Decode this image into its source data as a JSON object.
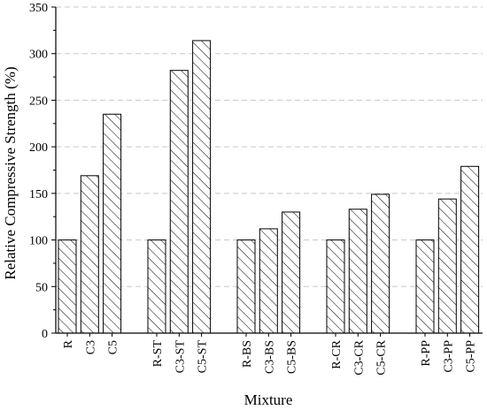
{
  "chart_data": {
    "type": "bar",
    "xlabel": "Mixture",
    "ylabel": "Relative Compressive Strength (%)",
    "ylim": [
      0,
      350
    ],
    "yticks": [
      0,
      50,
      100,
      150,
      200,
      250,
      300,
      350
    ],
    "grid": true,
    "fill": "hatched",
    "groups": [
      {
        "categories": [
          "R",
          "C3",
          "C5"
        ],
        "values": [
          100,
          169,
          235
        ]
      },
      {
        "categories": [
          "R-ST",
          "C3-ST",
          "C5-ST"
        ],
        "values": [
          100,
          282,
          314
        ]
      },
      {
        "categories": [
          "R-BS",
          "C3-BS",
          "C5-BS"
        ],
        "values": [
          100,
          112,
          130
        ]
      },
      {
        "categories": [
          "R-CR",
          "C3-CR",
          "C5-CR"
        ],
        "values": [
          100,
          133,
          149
        ]
      },
      {
        "categories": [
          "R-PP",
          "C3-PP",
          "C5-PP"
        ],
        "values": [
          100,
          144,
          179
        ]
      }
    ]
  }
}
